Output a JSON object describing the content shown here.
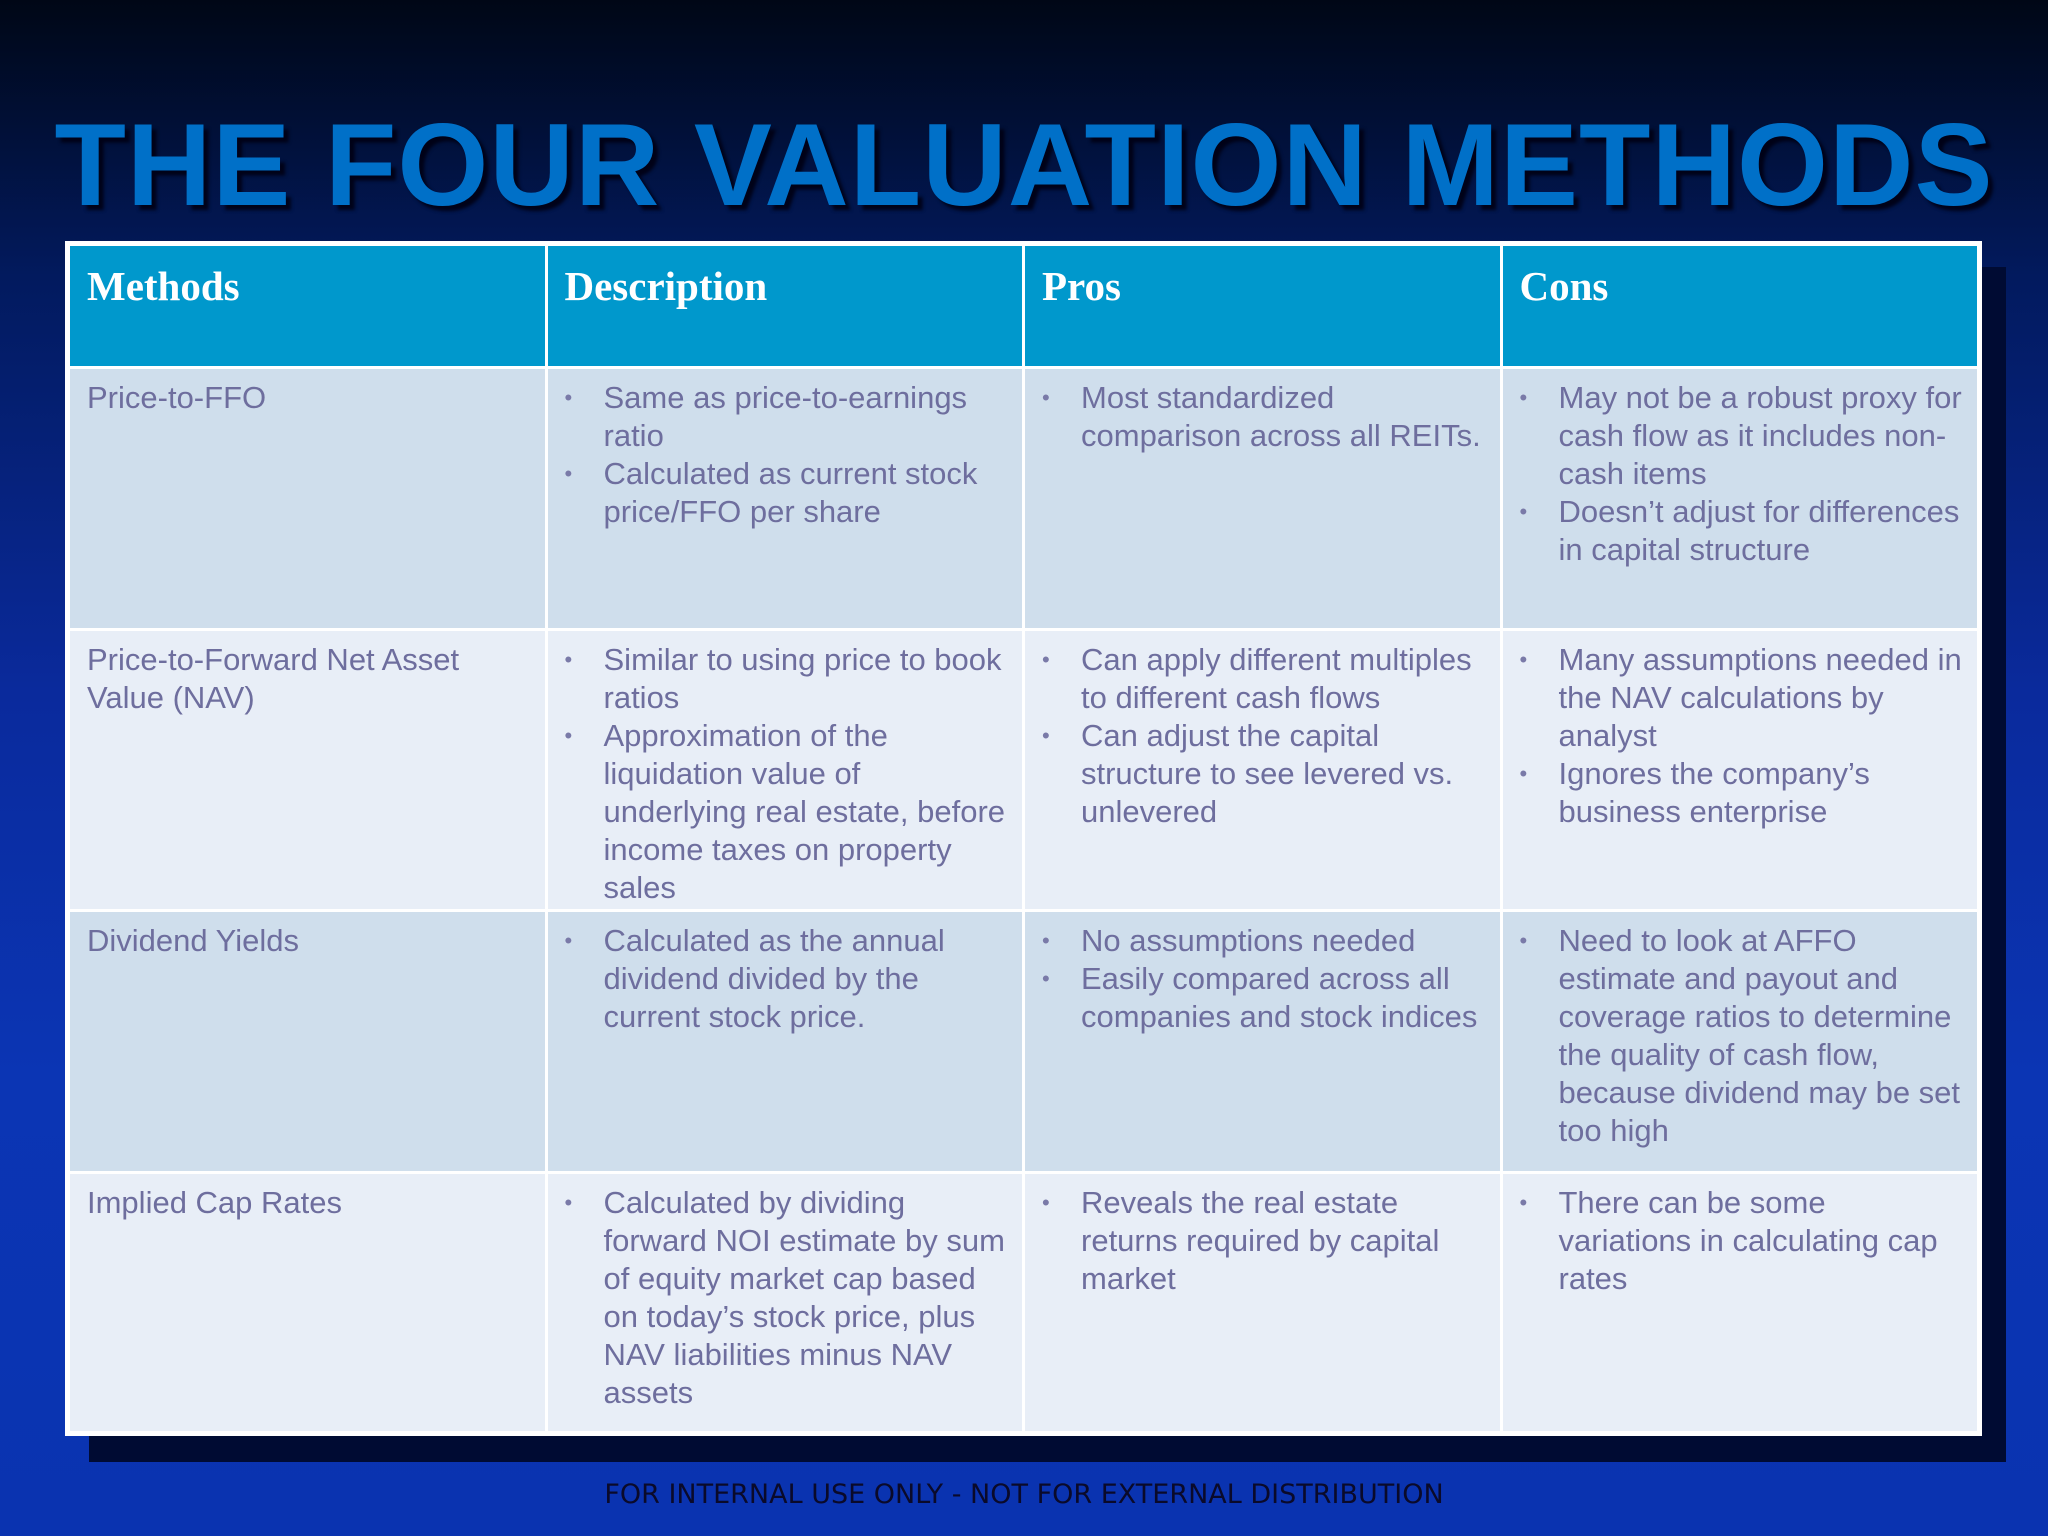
{
  "slide": {
    "title": "THE FOUR VALUATION METHODS",
    "footer": "FOR INTERNAL USE ONLY - NOT FOR EXTERNAL DISTRIBUTION"
  },
  "table": {
    "headers": [
      "Methods",
      "Description",
      "Pros",
      "Cons"
    ],
    "rows": [
      {
        "method": "Price-to-FFO",
        "description": [
          "Same as price-to-earnings ratio",
          "Calculated as current stock price/FFO per share"
        ],
        "pros": [
          "Most standardized comparison across all REITs."
        ],
        "cons": [
          "May not be a robust proxy for cash flow as it includes non-cash items",
          "Doesn’t adjust for differences in capital structure"
        ]
      },
      {
        "method": "Price-to-Forward Net Asset Value (NAV)",
        "description": [
          "Similar to using price to book ratios",
          "Approximation of the liquidation value of underlying real estate, before income taxes on property sales"
        ],
        "pros": [
          "Can apply different multiples to different cash flows",
          "Can adjust the capital structure to see levered vs. unlevered"
        ],
        "cons": [
          "Many assumptions needed in the NAV calculations  by analyst",
          "Ignores the company’s business enterprise"
        ]
      },
      {
        "method": "Dividend Yields",
        "description": [
          "Calculated as the annual dividend divided by the current stock price."
        ],
        "pros": [
          "No assumptions needed",
          "Easily compared across all companies and stock indices"
        ],
        "cons": [
          "Need to look at AFFO estimate and payout and coverage ratios to determine the quality of cash flow, because dividend may be set too high"
        ]
      },
      {
        "method": "Implied Cap Rates",
        "description": [
          "Calculated by dividing forward NOI estimate by sum of equity market cap based on today’s stock price, plus NAV liabilities minus NAV assets"
        ],
        "pros": [
          "Reveals the real estate returns required by capital market"
        ],
        "cons": [
          "There can be some variations in calculating cap rates"
        ]
      }
    ]
  }
}
